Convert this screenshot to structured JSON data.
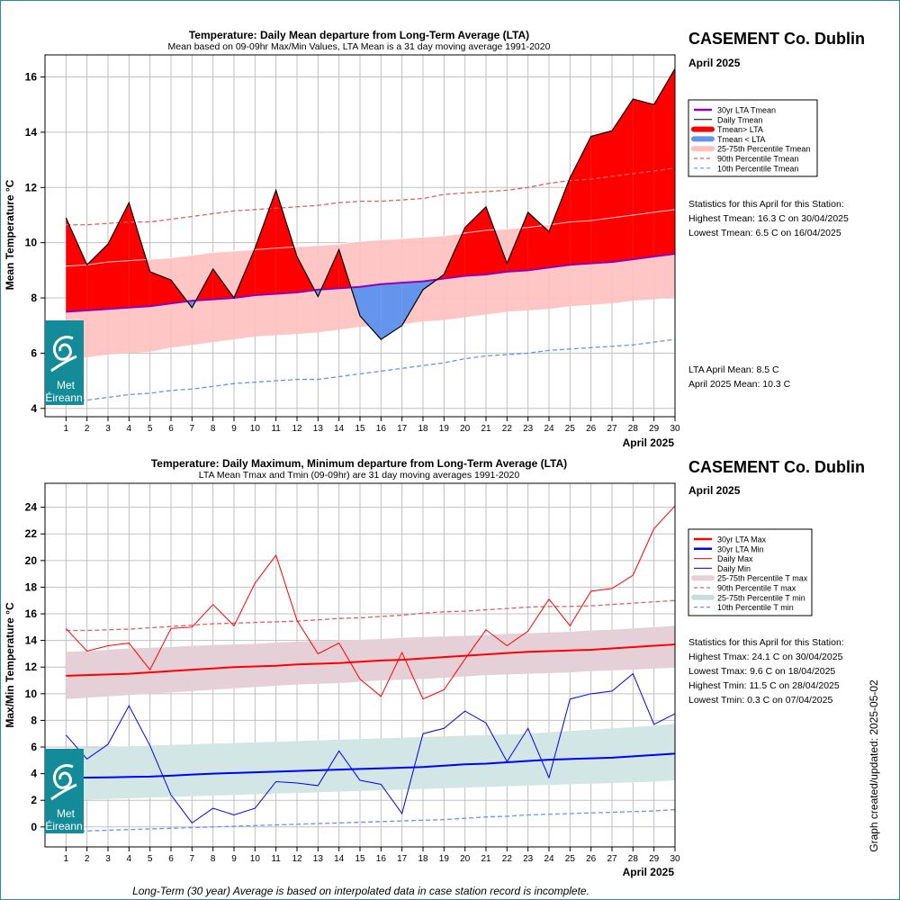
{
  "station": "CASEMENT Co. Dublin",
  "month": "April 2025",
  "footnote": "Long-Term (30 year) Average is based on interpolated data in case station record is incomplete.",
  "updated_label": "Graph created/updated:  2025-05-02",
  "logo": {
    "text_line1": "Met",
    "text_line2": "Éireann",
    "icon": "met-eireann-swirl-logo",
    "color": "#138b99"
  },
  "colors": {
    "lta_mean": "#9400b4",
    "daily_mean": "#000000",
    "above": "#ff0000",
    "below": "#6495ed",
    "band_mean": "#ffc0c0",
    "p90": "#e06060",
    "p10": "#6495ed",
    "lta_max": "#ff0000",
    "lta_min": "#0000ff",
    "daily_max": "#ff0000",
    "daily_min": "#0000ff",
    "band_max": "#e6d0d8",
    "band_min": "#d2e6e6",
    "grid": "#c0c0c0"
  },
  "chart_data": [
    {
      "type": "area",
      "title": "Temperature: Daily Mean departure from Long-Term Average (LTA)",
      "subtitle": "Mean based on 09-09hr Max/Min Values, LTA Mean is a 31 day moving average 1991-2020",
      "xlabel": "April 2025",
      "ylabel": "Mean Temperature °C",
      "x": [
        1,
        2,
        3,
        4,
        5,
        6,
        7,
        8,
        9,
        10,
        11,
        12,
        13,
        14,
        15,
        16,
        17,
        18,
        19,
        20,
        21,
        22,
        23,
        24,
        25,
        26,
        27,
        28,
        29,
        30
      ],
      "xlim": [
        0,
        30
      ],
      "ylim": [
        3.7,
        16.8
      ],
      "yticks": [
        4,
        6,
        8,
        10,
        12,
        14,
        16
      ],
      "grid": true,
      "legend_position": "right",
      "series": [
        {
          "name": "30yr LTA Tmean",
          "values": [
            7.5,
            7.55,
            7.6,
            7.65,
            7.7,
            7.8,
            7.9,
            7.95,
            8.0,
            8.1,
            8.15,
            8.2,
            8.3,
            8.35,
            8.4,
            8.5,
            8.55,
            8.6,
            8.7,
            8.8,
            8.85,
            8.95,
            9.0,
            9.1,
            9.2,
            9.25,
            9.3,
            9.4,
            9.5,
            9.6
          ]
        },
        {
          "name": "Daily Tmean",
          "values": [
            10.9,
            9.2,
            9.95,
            11.45,
            8.95,
            8.65,
            7.65,
            9.05,
            8.0,
            9.8,
            11.9,
            9.5,
            8.05,
            9.75,
            7.35,
            6.5,
            7.0,
            8.3,
            8.85,
            10.55,
            11.3,
            9.25,
            11.1,
            10.4,
            12.35,
            13.85,
            14.05,
            15.2,
            15.0,
            16.3
          ]
        },
        {
          "name": "25-75th Percentile Tmean",
          "lower": [
            5.8,
            5.85,
            5.95,
            6.0,
            6.05,
            6.2,
            6.3,
            6.4,
            6.5,
            6.6,
            6.65,
            6.7,
            6.75,
            6.85,
            6.95,
            7.0,
            7.05,
            7.15,
            7.2,
            7.3,
            7.4,
            7.5,
            7.55,
            7.6,
            7.7,
            7.75,
            7.8,
            7.9,
            7.95,
            8.05
          ],
          "upper": [
            9.15,
            9.2,
            9.3,
            9.35,
            9.4,
            9.45,
            9.55,
            9.65,
            9.7,
            9.75,
            9.8,
            9.85,
            9.9,
            9.95,
            10.05,
            10.1,
            10.15,
            10.2,
            10.25,
            10.35,
            10.45,
            10.5,
            10.55,
            10.65,
            10.75,
            10.8,
            10.9,
            11.0,
            11.1,
            11.2
          ]
        },
        {
          "name": "90th Percentile Tmean",
          "values": [
            10.65,
            10.65,
            10.7,
            10.75,
            10.75,
            10.85,
            10.95,
            11.05,
            11.15,
            11.2,
            11.25,
            11.3,
            11.35,
            11.45,
            11.5,
            11.5,
            11.55,
            11.6,
            11.75,
            11.8,
            11.85,
            11.9,
            12.0,
            12.15,
            12.25,
            12.3,
            12.4,
            12.5,
            12.6,
            12.7
          ]
        },
        {
          "name": "10th Percentile Tmean",
          "values": [
            4.25,
            4.3,
            4.4,
            4.5,
            4.55,
            4.65,
            4.7,
            4.8,
            4.9,
            4.95,
            5.0,
            5.05,
            5.05,
            5.15,
            5.25,
            5.35,
            5.45,
            5.55,
            5.65,
            5.8,
            5.9,
            5.95,
            6.0,
            6.1,
            6.15,
            6.2,
            6.25,
            6.3,
            6.4,
            6.5
          ]
        }
      ],
      "legend": [
        {
          "label": "30yr LTA Tmean",
          "kind": "line-thick",
          "color": "#9400b4"
        },
        {
          "label": "Daily Tmean",
          "kind": "line",
          "color": "#000000"
        },
        {
          "label": "Tmean> LTA",
          "kind": "bar",
          "color": "#ff0000"
        },
        {
          "label": "Tmean < LTA",
          "kind": "bar",
          "color": "#6495ed"
        },
        {
          "label": "25-75th Percentile Tmean",
          "kind": "bar",
          "color": "#ffc0c0"
        },
        {
          "label": "90th Percentile Tmean",
          "kind": "dash",
          "color": "#e06060"
        },
        {
          "label": "10th Percentile Tmean",
          "kind": "dash",
          "color": "#6495ed"
        }
      ],
      "stats_heading": "Statistics for this April for this Station:",
      "stats": [
        "Highest Tmean: 16.3 C on 30/04/2025",
        "Lowest Tmean: 6.5 C on 16/04/2025"
      ],
      "means": [
        "LTA April Mean: 8.5 C",
        "April 2025 Mean: 10.3 C"
      ]
    },
    {
      "type": "line",
      "title": "Temperature: Daily Maximum, Minimum departure from Long-Term Average (LTA)",
      "subtitle": "LTA Mean Tmax and Tmin (09-09hr) are 31 day moving averages 1991-2020",
      "xlabel": "April 2025",
      "ylabel": "Max/Min Temperature °C",
      "x": [
        1,
        2,
        3,
        4,
        5,
        6,
        7,
        8,
        9,
        10,
        11,
        12,
        13,
        14,
        15,
        16,
        17,
        18,
        19,
        20,
        21,
        22,
        23,
        24,
        25,
        26,
        27,
        28,
        29,
        30
      ],
      "xlim": [
        0,
        30
      ],
      "ylim": [
        -1.5,
        25.8
      ],
      "yticks": [
        0,
        2,
        4,
        6,
        8,
        10,
        12,
        14,
        16,
        18,
        20,
        22,
        24
      ],
      "grid": true,
      "legend_position": "right",
      "series": [
        {
          "name": "30yr LTA Max",
          "values": [
            11.35,
            11.4,
            11.45,
            11.5,
            11.6,
            11.7,
            11.8,
            11.9,
            12.0,
            12.05,
            12.1,
            12.2,
            12.25,
            12.3,
            12.4,
            12.5,
            12.55,
            12.65,
            12.75,
            12.85,
            12.95,
            13.05,
            13.15,
            13.2,
            13.25,
            13.3,
            13.4,
            13.5,
            13.6,
            13.7
          ]
        },
        {
          "name": "30yr LTA Min",
          "values": [
            3.7,
            3.7,
            3.72,
            3.75,
            3.78,
            3.85,
            3.93,
            4.0,
            4.05,
            4.1,
            4.15,
            4.2,
            4.25,
            4.3,
            4.35,
            4.4,
            4.45,
            4.5,
            4.6,
            4.7,
            4.75,
            4.85,
            4.95,
            5.05,
            5.1,
            5.15,
            5.2,
            5.3,
            5.4,
            5.5
          ]
        },
        {
          "name": "Daily Max",
          "values": [
            14.9,
            13.2,
            13.6,
            13.8,
            11.8,
            14.9,
            15.0,
            16.7,
            15.1,
            18.3,
            20.4,
            15.5,
            13.0,
            13.8,
            11.1,
            9.8,
            13.1,
            9.6,
            10.3,
            12.6,
            14.8,
            13.6,
            14.7,
            17.1,
            15.1,
            17.7,
            17.9,
            18.9,
            22.4,
            24.1
          ]
        },
        {
          "name": "Daily Min",
          "values": [
            6.9,
            5.1,
            6.2,
            9.1,
            6.1,
            2.4,
            0.3,
            1.4,
            0.9,
            1.4,
            3.4,
            3.3,
            3.1,
            5.7,
            3.5,
            3.2,
            1.0,
            7.0,
            7.4,
            8.7,
            7.8,
            4.9,
            7.4,
            3.7,
            9.6,
            10.0,
            10.2,
            11.5,
            7.7,
            8.5
          ]
        },
        {
          "name": "25-75th Percentile T max",
          "lower": [
            9.6,
            9.7,
            9.8,
            9.9,
            10.0,
            10.1,
            10.2,
            10.3,
            10.4,
            10.5,
            10.6,
            10.7,
            10.75,
            10.8,
            10.9,
            11.0,
            11.05,
            11.1,
            11.2,
            11.3,
            11.4,
            11.45,
            11.5,
            11.55,
            11.6,
            11.7,
            11.75,
            11.8,
            11.9,
            11.95
          ]
        },
        {
          "name": "90th Percentile T max",
          "values": [
            14.75,
            14.75,
            14.8,
            14.85,
            14.95,
            15.05,
            15.15,
            15.25,
            15.3,
            15.35,
            15.4,
            15.45,
            15.55,
            15.65,
            15.7,
            15.8,
            15.9,
            16.05,
            16.15,
            16.2,
            16.3,
            16.4,
            16.5,
            16.55,
            16.55,
            16.6,
            16.7,
            16.8,
            16.9,
            17.0
          ]
        },
        {
          "name": "25-75th Percentile T min",
          "lower": [
            2.0,
            2.05,
            2.1,
            2.15,
            2.2,
            2.25,
            2.3,
            2.35,
            2.4,
            2.45,
            2.5,
            2.55,
            2.6,
            2.65,
            2.7,
            2.75,
            2.8,
            2.85,
            2.9,
            2.95,
            3.0,
            3.05,
            3.1,
            3.15,
            3.2,
            3.25,
            3.3,
            3.35,
            3.4,
            3.5
          ],
          "upper": [
            5.9,
            5.95,
            6.0,
            6.05,
            6.1,
            6.15,
            6.2,
            6.25,
            6.3,
            6.35,
            6.4,
            6.45,
            6.5,
            6.55,
            6.6,
            6.65,
            6.7,
            6.75,
            6.8,
            6.85,
            6.9,
            6.95,
            7.0,
            7.1,
            7.2,
            7.3,
            7.4,
            7.5,
            7.6,
            7.75
          ]
        },
        {
          "name": "10th Percentile T min",
          "values": [
            -0.3,
            -0.3,
            -0.25,
            -0.2,
            -0.15,
            -0.1,
            -0.05,
            0.0,
            0.05,
            0.1,
            0.15,
            0.2,
            0.25,
            0.3,
            0.35,
            0.4,
            0.45,
            0.5,
            0.55,
            0.65,
            0.75,
            0.8,
            0.9,
            0.95,
            1.0,
            1.05,
            1.1,
            1.15,
            1.2,
            1.3
          ]
        }
      ],
      "band_max_upper": [
        13.15,
        13.2,
        13.3,
        13.4,
        13.45,
        13.5,
        13.6,
        13.65,
        13.7,
        13.75,
        13.85,
        13.9,
        13.95,
        14.0,
        14.05,
        14.1,
        14.2,
        14.25,
        14.3,
        14.35,
        14.4,
        14.5,
        14.55,
        14.6,
        14.65,
        14.75,
        14.8,
        14.9,
        15.0,
        15.1
      ],
      "legend": [
        {
          "label": "30yr LTA Max",
          "kind": "line-thick",
          "color": "#ff0000"
        },
        {
          "label": "30yr LTA Min",
          "kind": "line-thick",
          "color": "#0000ff"
        },
        {
          "label": "Daily Max",
          "kind": "line",
          "color": "#ff0000"
        },
        {
          "label": "Daily Min",
          "kind": "line",
          "color": "#0000ff"
        },
        {
          "label": "25-75th Percentile T max",
          "kind": "bar",
          "color": "#e6d0d8"
        },
        {
          "label": "90th Percentile T max",
          "kind": "dash",
          "color": "#e06060"
        },
        {
          "label": "25-75th Percentile T min",
          "kind": "bar",
          "color": "#c8dede"
        },
        {
          "label": "10th Percentile T min",
          "kind": "dash",
          "color": "#6495ed"
        }
      ],
      "stats_heading": "Statistics for this April for this Station:",
      "stats": [
        "Highest Tmax: 24.1 C on 30/04/2025",
        "Lowest Tmax: 9.6 C on 18/04/2025",
        "Highest Tmin: 11.5 C on 28/04/2025",
        "Lowest Tmin: 0.3 C on 07/04/2025"
      ]
    }
  ]
}
